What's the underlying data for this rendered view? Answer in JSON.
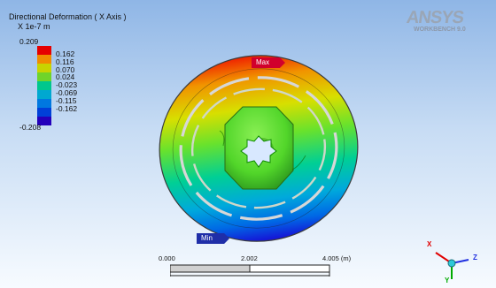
{
  "title": "Directional Deformation ( X Axis )",
  "units": "X 1e-7 m",
  "legend": {
    "max": "0.209",
    "min": "-0.208",
    "entries": [
      {
        "label": "0.162",
        "color": "#e60000"
      },
      {
        "label": "0.116",
        "color": "#f08c00"
      },
      {
        "label": "0.070",
        "color": "#c8d400"
      },
      {
        "label": "0.024",
        "color": "#6fd42a"
      },
      {
        "label": "-0.023",
        "color": "#00c78d"
      },
      {
        "label": "-0.069",
        "color": "#00a8d0"
      },
      {
        "label": "-0.115",
        "color": "#0078e0"
      },
      {
        "label": "-0.162",
        "color": "#0040d8"
      }
    ],
    "bottom_color": "#2400bb"
  },
  "probes": {
    "max": "Max",
    "min": "Min"
  },
  "logo": {
    "main": "ANSYS",
    "sub": "WORKBENCH 9.0"
  },
  "scale": {
    "start": "0.000",
    "mid": "2.002",
    "end": "4.005 (m)"
  },
  "triad": {
    "x": "X",
    "y": "Y",
    "z": "Z",
    "colors": {
      "x": "#e00000",
      "y": "#00aa00",
      "z": "#2030e0"
    }
  }
}
